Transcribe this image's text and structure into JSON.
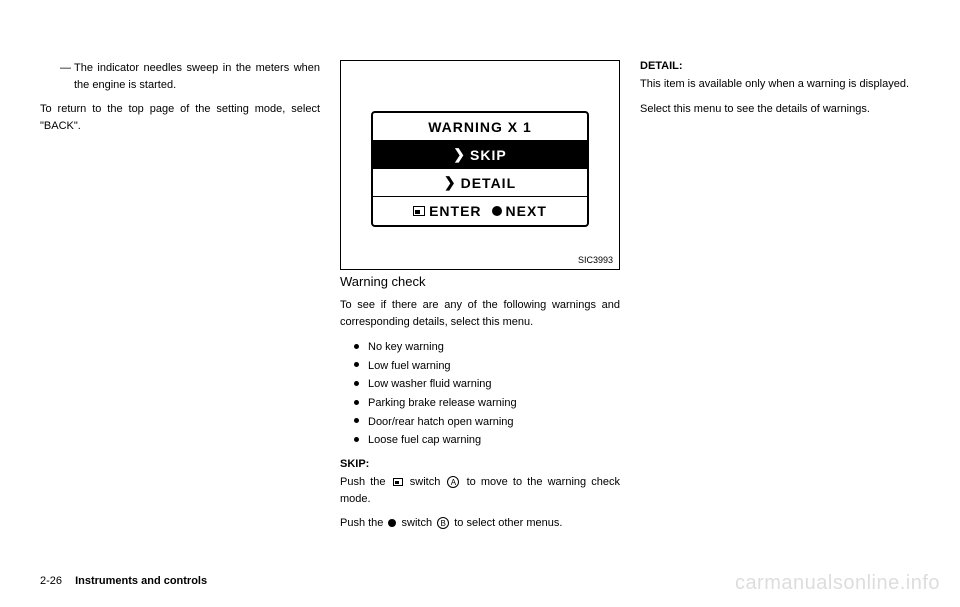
{
  "col1": {
    "dash_item": "The indicator needles sweep in the meters when the engine is started.",
    "p1": "To return to the top page of the setting mode, select \"BACK\"."
  },
  "figure": {
    "row1": "WARNING   X 1",
    "row2_symbol": "❯",
    "row2": "SKIP",
    "row3_symbol": "❯",
    "row3": "DETAIL",
    "row4_left": "ENTER",
    "row4_right": "NEXT",
    "label": "SIC3993"
  },
  "col2": {
    "subheading": "Warning check",
    "intro": "To see if there are any of the following warnings and corresponding details, select this menu.",
    "bullets": [
      "No key warning",
      "Low fuel warning",
      "Low washer fluid warning",
      "Parking brake release warning",
      "Door/rear hatch open warning",
      "Loose fuel cap warning"
    ],
    "skip_label": "SKIP:",
    "skip_p_a": "Push the",
    "skip_p_b": "switch",
    "skip_p_c": "to move to the warning check mode.",
    "skip2_a": "Push the",
    "skip2_b": "switch",
    "skip2_c": "to select other menus.",
    "circle_a": "A",
    "circle_b": "B"
  },
  "col3": {
    "detail_label": "DETAIL:",
    "p1": "This item is available only when a warning is displayed.",
    "p2": "Select this menu to see the details of warnings."
  },
  "footer": {
    "page": "2-26",
    "section": "Instruments and controls"
  },
  "watermark": "carmanualsonline.info"
}
